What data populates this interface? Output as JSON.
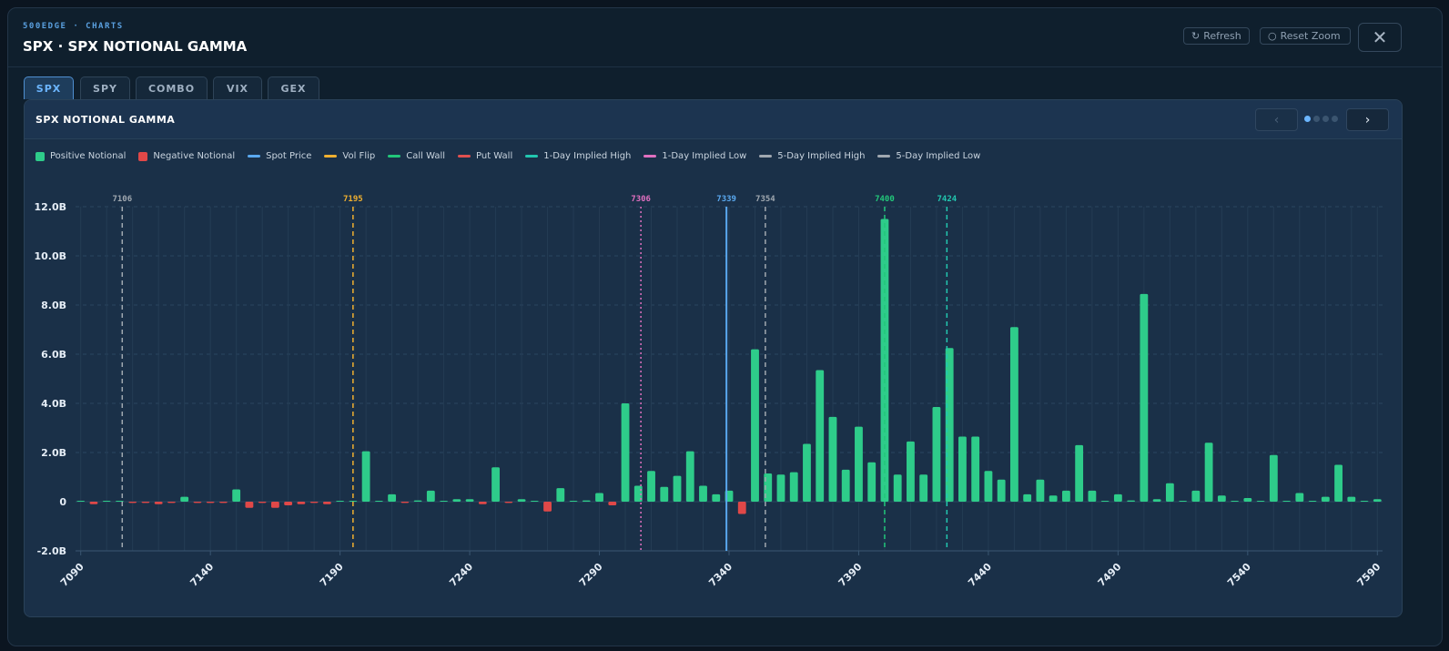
{
  "header": {
    "brand": "500EDGE · CHARTS",
    "title": "SPX · SPX NOTIONAL GAMMA",
    "refresh_label": "Refresh",
    "reset_zoom_label": "Reset Zoom",
    "close_icon": "close-icon"
  },
  "tabs": [
    {
      "label": "SPX",
      "active": true
    },
    {
      "label": "SPY",
      "active": false
    },
    {
      "label": "COMBO",
      "active": false
    },
    {
      "label": "VIX",
      "active": false
    },
    {
      "label": "GEX",
      "active": false
    }
  ],
  "panel": {
    "title": "SPX NOTIONAL GAMMA",
    "prev_label": "‹",
    "next_label": "›"
  },
  "colors": {
    "positive": "#2ecc8a",
    "negative": "#e04848",
    "spot": "#5aa9f0",
    "vol_flip": "#f0b030",
    "call_wall": "#22c77a",
    "put_wall": "#e05050",
    "one_day_high": "#22c7b0",
    "one_day_low": "#e070c0",
    "five_day_high": "#a0a8b0",
    "five_day_low": "#a0a8b0"
  },
  "chart_data": {
    "type": "bar",
    "title": "SPX NOTIONAL GAMMA",
    "xlabel": "",
    "ylabel": "",
    "xlim": [
      7088,
      7592
    ],
    "ylim": [
      -2.0,
      12.0
    ],
    "y_ticks": [
      {
        "value": 12,
        "label": "12.0B"
      },
      {
        "value": 10,
        "label": "10.0B"
      },
      {
        "value": 8,
        "label": "8.0B"
      },
      {
        "value": 6,
        "label": "6.0B"
      },
      {
        "value": 4,
        "label": "4.0B"
      },
      {
        "value": 2,
        "label": "2.0B"
      },
      {
        "value": 0,
        "label": "0"
      },
      {
        "value": -2,
        "label": "-2.0B"
      }
    ],
    "x_ticks": [
      7090,
      7140,
      7190,
      7240,
      7290,
      7340,
      7390,
      7440,
      7490,
      7540,
      7590
    ],
    "legend": [
      "Positive Notional",
      "Negative Notional",
      "Spot Price",
      "Vol Flip",
      "Call Wall",
      "Put Wall",
      "1-Day Implied High",
      "1-Day Implied Low",
      "5-Day Implied High",
      "5-Day Implied Low"
    ],
    "legend_position": "top-left",
    "grid": true,
    "units": "B",
    "strikes": [
      7090,
      7095,
      7100,
      7105,
      7110,
      7115,
      7120,
      7125,
      7130,
      7135,
      7140,
      7145,
      7150,
      7155,
      7160,
      7165,
      7170,
      7175,
      7180,
      7185,
      7190,
      7195,
      7200,
      7205,
      7210,
      7215,
      7220,
      7225,
      7230,
      7235,
      7240,
      7245,
      7250,
      7255,
      7260,
      7265,
      7270,
      7275,
      7280,
      7285,
      7290,
      7295,
      7300,
      7305,
      7310,
      7315,
      7320,
      7325,
      7330,
      7335,
      7340,
      7345,
      7350,
      7355,
      7360,
      7365,
      7370,
      7375,
      7380,
      7385,
      7390,
      7395,
      7400,
      7405,
      7410,
      7415,
      7420,
      7425,
      7430,
      7435,
      7440,
      7445,
      7450,
      7455,
      7460,
      7465,
      7470,
      7475,
      7480,
      7485,
      7490,
      7495,
      7500,
      7505,
      7510,
      7515,
      7520,
      7525,
      7530,
      7535,
      7540,
      7545,
      7550,
      7555,
      7560,
      7565,
      7570,
      7575,
      7580,
      7585,
      7590
    ],
    "values": [
      0,
      -0.1,
      0,
      0,
      -0.05,
      -0.05,
      -0.1,
      -0.05,
      0.2,
      -0.05,
      -0.05,
      -0.05,
      0.5,
      -0.25,
      -0.05,
      -0.25,
      -0.15,
      -0.1,
      -0.05,
      -0.1,
      0,
      0,
      2.05,
      0,
      0.3,
      -0.05,
      0.05,
      0.45,
      0,
      0.1,
      0.1,
      -0.1,
      1.4,
      -0.05,
      0.1,
      0,
      -0.4,
      0.55,
      0,
      0.05,
      0.35,
      -0.15,
      4.0,
      0.65,
      1.25,
      0.6,
      1.05,
      2.05,
      0.65,
      0.3,
      0.45,
      -0.5,
      6.2,
      1.15,
      1.1,
      1.2,
      2.35,
      5.35,
      3.45,
      1.3,
      3.05,
      1.6,
      11.5,
      1.1,
      2.45,
      1.1,
      3.85,
      6.25,
      2.65,
      2.65,
      1.25,
      0.9,
      7.1,
      0.3,
      0.9,
      0.25,
      0.45,
      2.3,
      0.45,
      0,
      0.3,
      0.05,
      8.45,
      0.1,
      0.75,
      0,
      0.45,
      2.4,
      0.25,
      0,
      0.15,
      0,
      1.9,
      0,
      0.35,
      0,
      0.2,
      1.5,
      0.2,
      0,
      0.1
    ],
    "levels": [
      {
        "name": "5-Day Implied Low",
        "value": 7106,
        "label": "7106",
        "key": "five_day_low",
        "style": "dashed"
      },
      {
        "name": "Vol Flip",
        "value": 7195,
        "label": "7195",
        "key": "vol_flip",
        "style": "dashed"
      },
      {
        "name": "1-Day Implied Low",
        "value": 7306,
        "label": "7306",
        "key": "one_day_low",
        "style": "dotted"
      },
      {
        "name": "Spot Price",
        "value": 7339,
        "label": "7339",
        "key": "spot",
        "style": "solid"
      },
      {
        "name": "5-Day Implied High",
        "value": 7354,
        "label": "7354",
        "key": "five_day_high",
        "style": "dashed"
      },
      {
        "name": "Call Wall",
        "value": 7400,
        "label": "7400",
        "key": "call_wall",
        "style": "dashed"
      },
      {
        "name": "1-Day Implied High",
        "value": 7424,
        "label": "7424",
        "key": "one_day_high",
        "style": "dashed"
      }
    ]
  }
}
